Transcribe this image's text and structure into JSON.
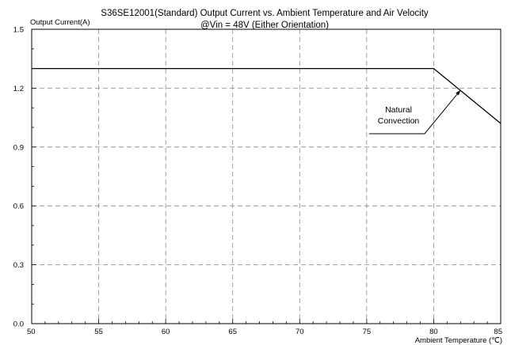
{
  "chart_data": {
    "type": "line",
    "title": "S36SE12001(Standard)  Output Current vs. Ambient Temperature and Air Velocity",
    "subtitle": "@Vin = 48V (Either Orientation)",
    "ylabel": "Output Current(A)",
    "xlabel": "Ambient Temperature (℃)",
    "xlim": [
      50,
      85
    ],
    "ylim": [
      0,
      1.5
    ],
    "x_ticks": [
      50,
      55,
      60,
      65,
      70,
      75,
      80,
      85
    ],
    "y_ticks": [
      "0.0",
      "0.3",
      "0.6",
      "0.9",
      "1.2",
      "1.5"
    ],
    "grid": true,
    "series": [
      {
        "name": "Natural Convection",
        "x": [
          50,
          80,
          85
        ],
        "y": [
          1.3,
          1.3,
          1.02
        ]
      }
    ],
    "annotations": [
      {
        "text_lines": [
          "Natural",
          "Convection"
        ],
        "points_to": {
          "x": 82,
          "y": 1.19
        }
      }
    ],
    "colors": {
      "line": "#000000",
      "grid": "#888888",
      "axes": "#000000"
    }
  }
}
